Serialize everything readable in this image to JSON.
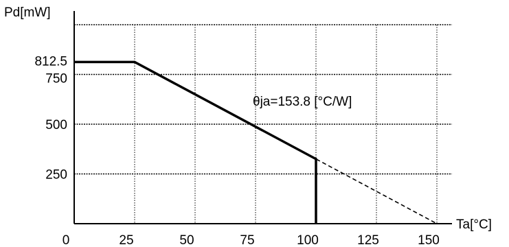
{
  "chart_data": {
    "type": "line",
    "title": "",
    "xlabel": "Ta[°C]",
    "ylabel": "Pd[mW]",
    "xlim": [
      0,
      150
    ],
    "ylim": [
      0,
      1000
    ],
    "x_ticks": [
      {
        "value": 0,
        "label": "0"
      },
      {
        "value": 25,
        "label": "25"
      },
      {
        "value": 50,
        "label": "50"
      },
      {
        "value": 75,
        "label": "75"
      },
      {
        "value": 100,
        "label": "100"
      },
      {
        "value": 125,
        "label": "125"
      },
      {
        "value": 150,
        "label": "150"
      }
    ],
    "y_ticks": [
      {
        "value": 250,
        "label": "250"
      },
      {
        "value": 500,
        "label": "500"
      },
      {
        "value": 750,
        "label": "750"
      },
      {
        "value": 812.5,
        "label": "812.5"
      }
    ],
    "grid_x": [
      25,
      50,
      75,
      100,
      125,
      150
    ],
    "grid_y": [
      250,
      500,
      750,
      1000
    ],
    "grid": true,
    "series": [
      {
        "style": "solid",
        "x": [
          0,
          25,
          100,
          100
        ],
        "y": [
          812.5,
          812.5,
          325,
          0
        ]
      },
      {
        "style": "dashed",
        "x": [
          25,
          150
        ],
        "y": [
          812.5,
          0
        ]
      }
    ],
    "annotation": {
      "text": "θja=153.8 [°C/W]",
      "x": 100,
      "y": 620
    },
    "colors": {
      "line": "#000000",
      "grid": "#000000",
      "background": "#ffffff"
    }
  }
}
